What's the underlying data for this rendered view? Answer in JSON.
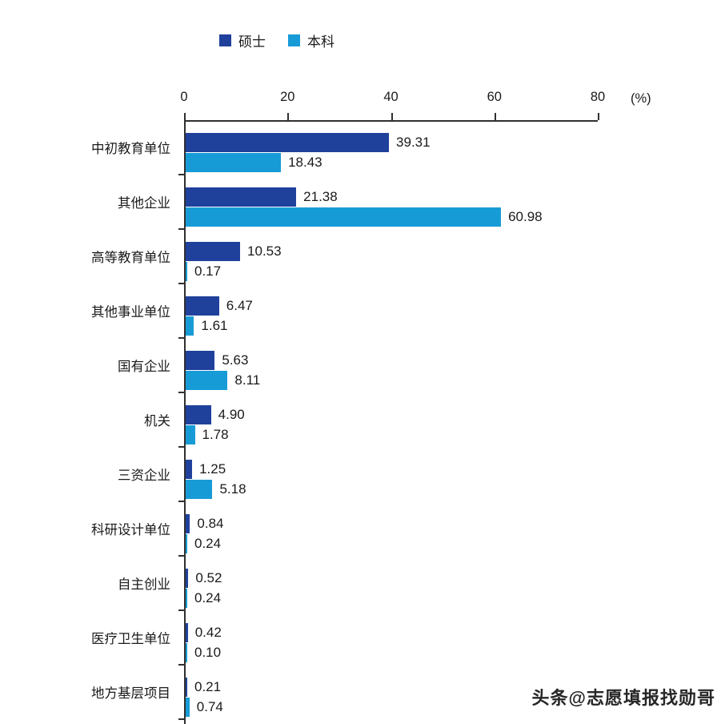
{
  "legend": {
    "items": [
      {
        "key": "masters",
        "label": "硕士",
        "color": "#1f419c"
      },
      {
        "key": "bachelor",
        "label": "本科",
        "color": "#179bd7"
      }
    ]
  },
  "axis": {
    "unit_label": "(%)"
  },
  "watermark": "头条@志愿填报找勋哥",
  "chart_data": {
    "type": "bar",
    "orientation": "horizontal",
    "title": "",
    "xlabel": "(%)",
    "ylabel": "",
    "xlim": [
      0,
      80
    ],
    "xticks": [
      0,
      20,
      40,
      60,
      80
    ],
    "grid": false,
    "legend_position": "top",
    "categories": [
      "中初教育单位",
      "其他企业",
      "高等教育单位",
      "其他事业单位",
      "国有企业",
      "机关",
      "三资企业",
      "科研设计单位",
      "自主创业",
      "医疗卫生单位",
      "地方基层项目"
    ],
    "series": [
      {
        "name": "硕士",
        "key": "masters",
        "color": "#1f419c",
        "values": [
          39.31,
          21.38,
          10.53,
          6.47,
          5.63,
          4.9,
          1.25,
          0.84,
          0.52,
          0.42,
          0.21
        ],
        "labels": [
          "39.31",
          "21.38",
          "10.53",
          "6.47",
          "5.63",
          "4.90",
          "1.25",
          "0.84",
          "0.52",
          "0.42",
          "0.21"
        ]
      },
      {
        "name": "本科",
        "key": "bachelor",
        "color": "#179bd7",
        "values": [
          18.43,
          60.98,
          0.17,
          1.61,
          8.11,
          1.78,
          5.18,
          0.24,
          0.24,
          0.1,
          0.74
        ],
        "labels": [
          "18.43",
          "60.98",
          "0.17",
          "1.61",
          "8.11",
          "1.78",
          "5.18",
          "0.24",
          "0.24",
          "0.10",
          "0.74"
        ]
      }
    ]
  }
}
